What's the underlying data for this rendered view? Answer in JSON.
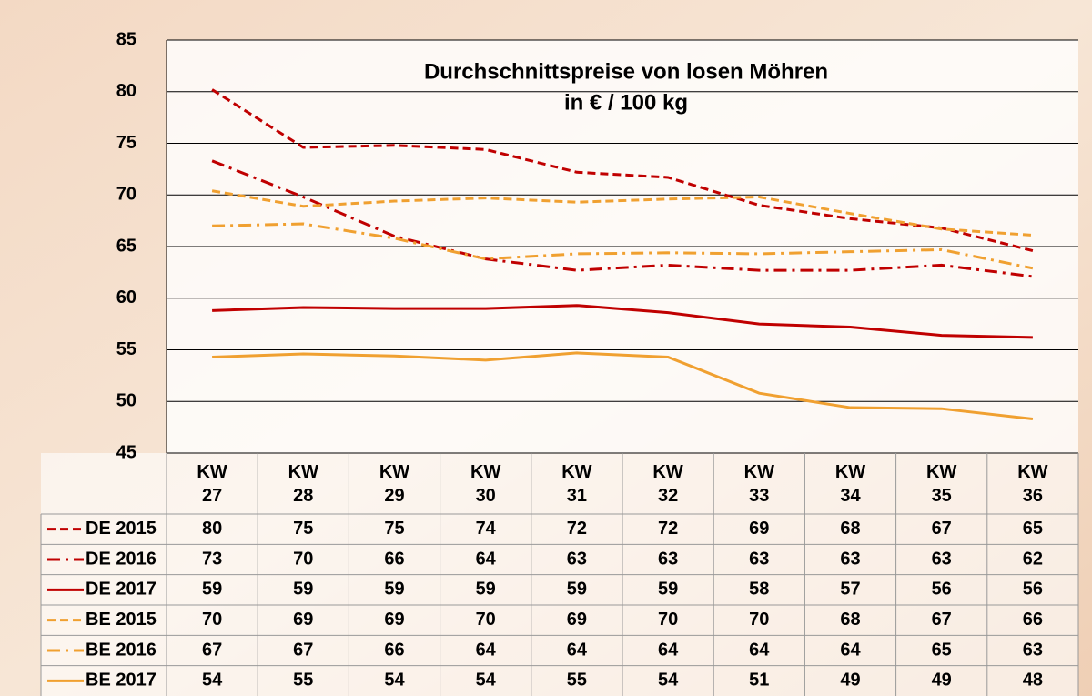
{
  "chart_data": {
    "type": "line",
    "title": "Durchschnittspreise von losen Möhren",
    "subtitle": "in € / 100 kg",
    "categories": [
      "KW 27",
      "KW 28",
      "KW 29",
      "KW 30",
      "KW 31",
      "KW 32",
      "KW 33",
      "KW 34",
      "KW 35",
      "KW 36"
    ],
    "ylim": [
      45,
      85
    ],
    "yticks": [
      45,
      50,
      55,
      60,
      65,
      70,
      75,
      80,
      85
    ],
    "grid": true,
    "series": [
      {
        "name": "DE 2015",
        "color": "#c00000",
        "style": "dashed",
        "values": [
          80.2,
          74.6,
          74.8,
          74.4,
          72.2,
          71.7,
          69.0,
          67.7,
          66.8,
          64.6
        ],
        "value_labels": [
          "80",
          "75",
          "75",
          "74",
          "72",
          "72",
          "69",
          "68",
          "67",
          "65"
        ]
      },
      {
        "name": "DE 2016",
        "color": "#c00000",
        "style": "dashdot",
        "values": [
          73.3,
          69.8,
          66.0,
          63.8,
          62.7,
          63.2,
          62.7,
          62.7,
          63.2,
          62.1
        ],
        "value_labels": [
          "73",
          "70",
          "66",
          "64",
          "63",
          "63",
          "63",
          "63",
          "63",
          "62"
        ]
      },
      {
        "name": "DE 2017",
        "color": "#c00000",
        "style": "solid",
        "values": [
          58.8,
          59.1,
          59.0,
          59.0,
          59.3,
          58.6,
          57.5,
          57.2,
          56.4,
          56.2
        ],
        "value_labels": [
          "59",
          "59",
          "59",
          "59",
          "59",
          "59",
          "58",
          "57",
          "56",
          "56"
        ]
      },
      {
        "name": "BE 2015",
        "color": "#f0a030",
        "style": "dashed",
        "values": [
          70.4,
          68.9,
          69.4,
          69.7,
          69.3,
          69.6,
          69.8,
          68.2,
          66.7,
          66.1
        ],
        "value_labels": [
          "70",
          "69",
          "69",
          "70",
          "69",
          "70",
          "70",
          "68",
          "67",
          "66"
        ]
      },
      {
        "name": "BE 2016",
        "color": "#f0a030",
        "style": "dashdot",
        "values": [
          67.0,
          67.2,
          65.8,
          63.8,
          64.3,
          64.4,
          64.3,
          64.5,
          64.7,
          62.9
        ],
        "value_labels": [
          "67",
          "67",
          "66",
          "64",
          "64",
          "64",
          "64",
          "64",
          "65",
          "63"
        ]
      },
      {
        "name": "BE 2017",
        "color": "#f0a030",
        "style": "solid",
        "values": [
          54.3,
          54.6,
          54.4,
          54.0,
          54.7,
          54.3,
          50.8,
          49.4,
          49.3,
          48.3
        ],
        "value_labels": [
          "54",
          "55",
          "54",
          "54",
          "55",
          "54",
          "51",
          "49",
          "49",
          "48"
        ]
      }
    ]
  }
}
